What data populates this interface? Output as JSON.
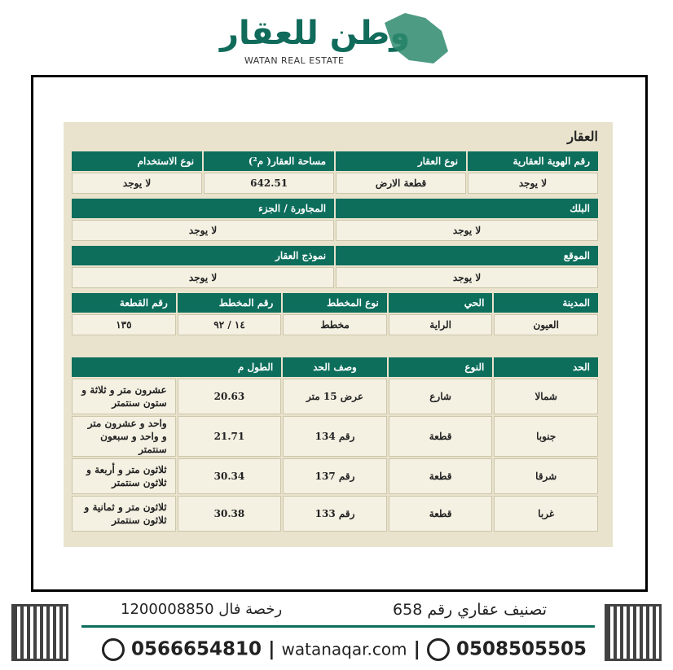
{
  "header": {
    "logo_ar": "وطن للعقار",
    "logo_en": "WATAN REAL ESTATE"
  },
  "property": {
    "title": "العقار",
    "row1": {
      "headers": [
        "رقم الهوية العقارية",
        "نوع العقار",
        "مساحة العقار( م²)",
        "نوع الاستخدام"
      ],
      "values": [
        "لا يوجد",
        "قطعة الارض",
        "642.51",
        "لا يوجد"
      ]
    },
    "row2": {
      "headers": [
        "البلك",
        "المجاورة / الجزء"
      ],
      "values": [
        "لا يوجد",
        "لا يوجد"
      ]
    },
    "row3": {
      "headers": [
        "الموقع",
        "نموذج العقار"
      ],
      "values": [
        "لا يوجد",
        "لا يوجد"
      ]
    },
    "row4": {
      "headers": [
        "المدينة",
        "الحي",
        "نوع المخطط",
        "رقم المخطط",
        "رقم القطعة"
      ],
      "values": [
        "العيون",
        "الراية",
        "مخطط",
        "١٤ / ٩٢",
        "١٣٥"
      ]
    }
  },
  "boundaries": {
    "headers": [
      "الحد",
      "النوع",
      "وصف الحد",
      "الطول م"
    ],
    "rows": [
      [
        "شمالا",
        "شارع",
        "عرض 15 متر",
        "20.63",
        "عشرون متر و ثلاثة و ستون سنتمتر"
      ],
      [
        "جنوبا",
        "قطعة",
        "رقم 134",
        "21.71",
        "واحد و عشرون متر و واحد و سبعون سنتمتر"
      ],
      [
        "شرقا",
        "قطعة",
        "رقم 137",
        "30.34",
        "ثلاثون متر و أربعة و ثلاثون سنتمتر"
      ],
      [
        "غربا",
        "قطعة",
        "رقم 133",
        "30.38",
        "ثلاثون متر و ثمانية و ثلاثون سنتمتر"
      ]
    ]
  },
  "footer": {
    "classification": "تصنيف عقاري رقم 658",
    "license": "رخصة فال 1200008850",
    "phone1": "0508505505",
    "website": "watanaqar.com",
    "phone2": "0566654810"
  }
}
